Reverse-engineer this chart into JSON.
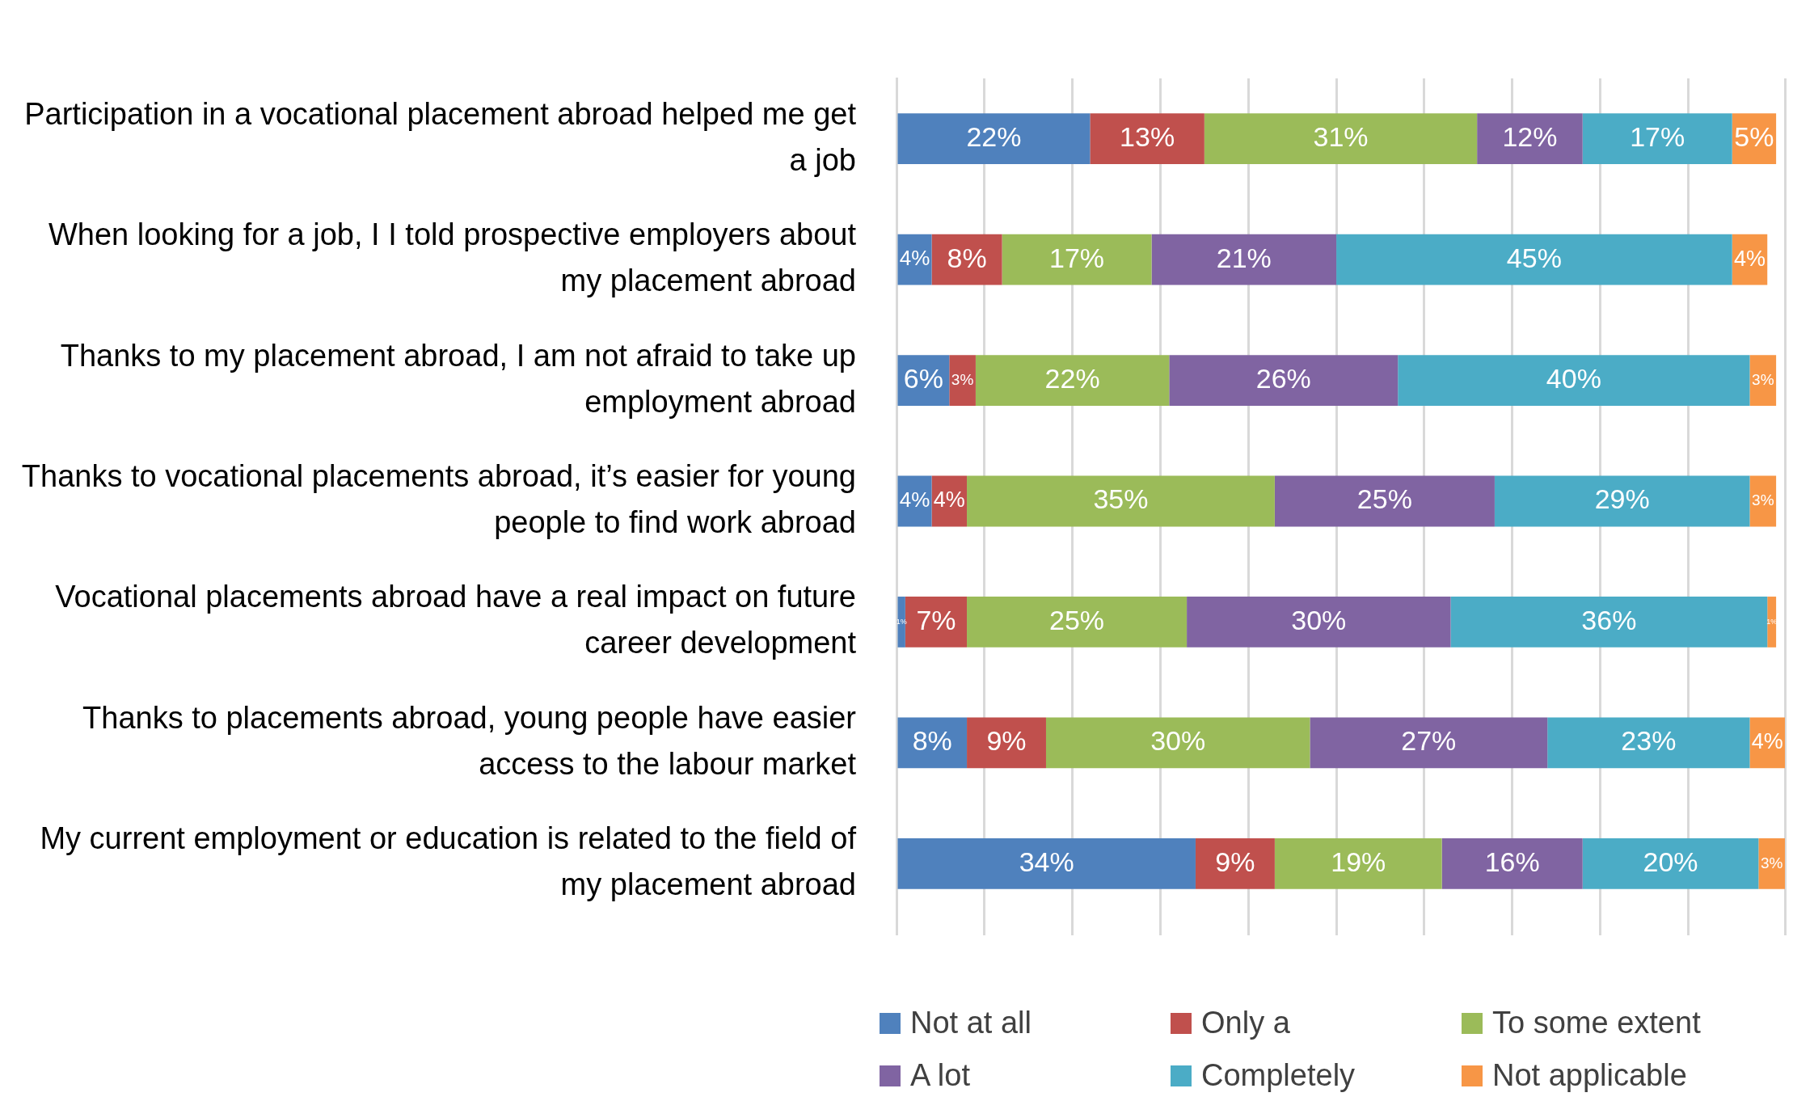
{
  "chart_data": {
    "type": "bar",
    "orientation": "horizontal",
    "stacked": true,
    "categories": [
      "Participation in a vocational placement abroad helped me get a job",
      "When looking for a job, I I told prospective employers about my placement abroad",
      "Thanks to my placement abroad, I am not afraid to take up employment abroad",
      "Thanks to vocational placements abroad, it’s easier for young people to find work abroad",
      "Vocational placements abroad have a real impact on future career development",
      "Thanks to placements abroad, young people have easier access to the labour market",
      "My current employment or education is related to the field of my placement abroad"
    ],
    "series": [
      {
        "name": "Not at all",
        "color": "#4f81bd",
        "values": [
          22,
          4,
          6,
          4,
          1,
          8,
          34
        ],
        "value_labels": [
          "22%",
          "4%",
          "6%",
          "4%",
          "1%",
          "8%",
          "34%"
        ]
      },
      {
        "name": "Only a",
        "color": "#c0504d",
        "values": [
          13,
          8,
          3,
          4,
          7,
          9,
          9
        ],
        "value_labels": [
          "13%",
          "8%",
          "3%",
          "4%",
          "7%",
          "9%",
          "9%"
        ]
      },
      {
        "name": "To some extent",
        "color": "#9bbb59",
        "values": [
          31,
          17,
          22,
          35,
          25,
          30,
          19
        ],
        "value_labels": [
          "31%",
          "17%",
          "22%",
          "35%",
          "25%",
          "30%",
          "19%"
        ]
      },
      {
        "name": "A lot",
        "color": "#8064a2",
        "values": [
          12,
          21,
          26,
          25,
          30,
          27,
          16
        ],
        "value_labels": [
          "12%",
          "21%",
          "26%",
          "25%",
          "30%",
          "27%",
          "16%"
        ]
      },
      {
        "name": "Completely",
        "color": "#4bacc6",
        "values": [
          17,
          45,
          40,
          29,
          36,
          23,
          20
        ],
        "value_labels": [
          "17%",
          "45%",
          "40%",
          "29%",
          "36%",
          "23%",
          "20%"
        ]
      },
      {
        "name": "Not applicable",
        "color": "#f79646",
        "values": [
          5,
          4,
          3,
          3,
          1,
          4,
          3
        ],
        "value_labels": [
          "5%",
          "4%",
          "3%",
          "3%",
          "1%",
          "4%",
          "3%"
        ]
      }
    ],
    "tick_labels": "y",
    "grid": "x",
    "legend": "bottom"
  }
}
